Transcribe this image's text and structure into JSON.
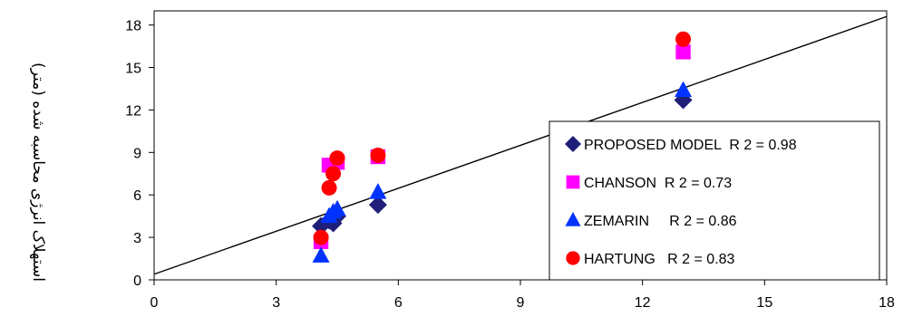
{
  "chart_data": {
    "type": "scatter",
    "ylabel": "استهلاک انرژی محاسبه شده (متر)",
    "xlabel": "",
    "xlim": [
      0,
      18
    ],
    "ylim": [
      0,
      19
    ],
    "x_ticks": [
      0,
      3,
      6,
      9,
      12,
      15,
      18
    ],
    "y_ticks": [
      0,
      3,
      6,
      9,
      12,
      15,
      18
    ],
    "grid": false,
    "legend_position": "right",
    "reference_line": {
      "x": [
        0,
        18
      ],
      "y": [
        0.4,
        18.6
      ]
    },
    "series": [
      {
        "name": "PROPOSED MODEL  R 2 = 0.98",
        "marker": "diamond",
        "color": "#1f1f7a",
        "points": [
          [
            4.1,
            3.8
          ],
          [
            4.3,
            4.2
          ],
          [
            4.4,
            4.0
          ],
          [
            4.5,
            4.5
          ],
          [
            5.5,
            5.3
          ],
          [
            13.0,
            12.7
          ]
        ]
      },
      {
        "name": "CHANSON  R 2 = 0.73",
        "marker": "square",
        "color": "#ff00ff",
        "points": [
          [
            4.1,
            2.7
          ],
          [
            4.3,
            8.1
          ],
          [
            4.5,
            8.3
          ],
          [
            5.5,
            8.7
          ],
          [
            13.0,
            16.1
          ]
        ]
      },
      {
        "name": "ZEMARIN     R 2 = 0.86",
        "marker": "triangle",
        "color": "#0033ff",
        "points": [
          [
            4.1,
            1.7
          ],
          [
            4.3,
            4.5
          ],
          [
            4.4,
            4.8
          ],
          [
            4.5,
            5.0
          ],
          [
            5.5,
            6.2
          ],
          [
            13.0,
            13.4
          ]
        ]
      },
      {
        "name": "HARTUNG   R 2 = 0.83",
        "marker": "circle",
        "color": "#ff0000",
        "points": [
          [
            4.1,
            3.0
          ],
          [
            4.3,
            6.5
          ],
          [
            4.4,
            7.5
          ],
          [
            4.5,
            8.6
          ],
          [
            5.5,
            8.8
          ],
          [
            13.0,
            17.0
          ]
        ]
      }
    ]
  }
}
